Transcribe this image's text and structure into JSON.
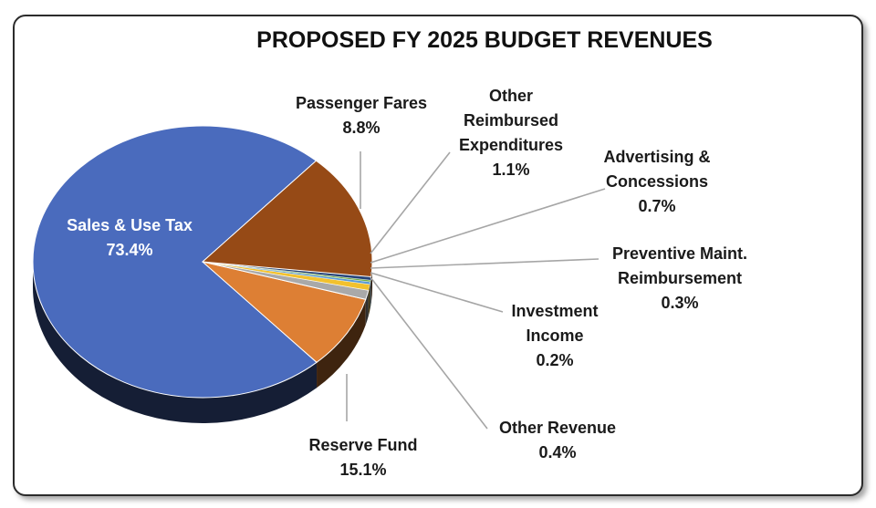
{
  "chart_data": {
    "type": "pie",
    "title": "PROPOSED FY 2025 BUDGET REVENUES",
    "slices": [
      {
        "label_lines": [
          "Sales & Use Tax"
        ],
        "value": 73.4,
        "value_text": "73.4%",
        "color": "#4a6bbd"
      },
      {
        "label_lines": [
          "Passenger Fares"
        ],
        "value": 8.8,
        "value_text": "8.8%",
        "color": "#dd7f34"
      },
      {
        "label_lines": [
          "Other",
          "Reimbursed",
          "Expenditures"
        ],
        "value": 1.1,
        "value_text": "1.1%",
        "color": "#a9a9a9"
      },
      {
        "label_lines": [
          "Advertising &",
          "Concessions"
        ],
        "value": 0.7,
        "value_text": "0.7%",
        "color": "#f2c12e"
      },
      {
        "label_lines": [
          "Preventive Maint.",
          "Reimbursement"
        ],
        "value": 0.3,
        "value_text": "0.3%",
        "color": "#5b9bd5"
      },
      {
        "label_lines": [
          "Investment",
          "Income"
        ],
        "value": 0.2,
        "value_text": "0.2%",
        "color": "#70ad47"
      },
      {
        "label_lines": [
          "Other Revenue"
        ],
        "value": 0.4,
        "value_text": "0.4%",
        "color": "#264478"
      },
      {
        "label_lines": [
          "Reserve Fund"
        ],
        "value": 15.1,
        "value_text": "15.1%",
        "color": "#964a16"
      }
    ],
    "leader_color": "#a6a6a6"
  }
}
